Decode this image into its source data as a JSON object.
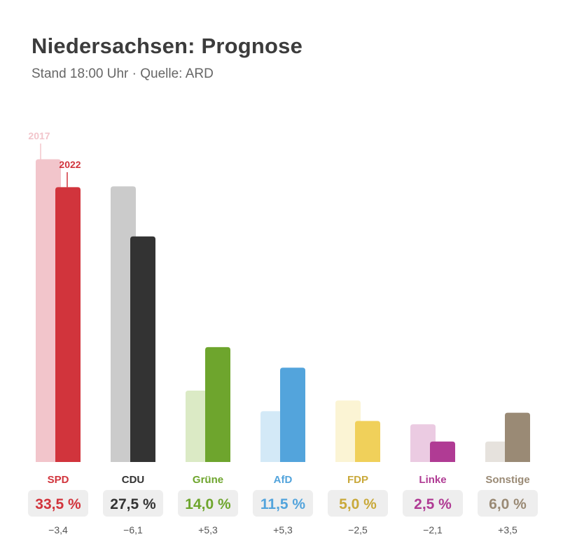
{
  "header": {
    "title": "Niedersachsen: Prognose",
    "subtitle": "Stand 18:00 Uhr · Quelle: ARD"
  },
  "chart_data": {
    "type": "bar",
    "title": "Niedersachsen: Prognose",
    "subtitle": "Stand 18:00 Uhr · Quelle: ARD",
    "year_labels": [
      "2017",
      "2022"
    ],
    "unit_symbol": "%",
    "categories": [
      "SPD",
      "CDU",
      "Grüne",
      "AfD",
      "FDP",
      "Linke",
      "Sonstige"
    ],
    "series": [
      {
        "name": "2017",
        "values": [
          36.9,
          33.6,
          8.7,
          6.2,
          7.5,
          4.6,
          2.5
        ]
      },
      {
        "name": "2022",
        "values": [
          33.5,
          27.5,
          14.0,
          11.5,
          5.0,
          2.5,
          6.0
        ]
      }
    ],
    "value_labels": [
      "33,5",
      "27,5",
      "14,0",
      "11,5",
      "5,0",
      "2,5",
      "6,0"
    ],
    "diff_labels": [
      "−3,4",
      "−6,1",
      "+5,3",
      "+5,3",
      "−2,5",
      "−2,1",
      "+3,5"
    ],
    "colors_2022": [
      "#d1343c",
      "#333333",
      "#6ea52d",
      "#53a4dc",
      "#f0d05a",
      "#b03b94",
      "#9a8a75"
    ],
    "colors_2017": [
      "#f2c5cb",
      "#cbcbcb",
      "#dbeac5",
      "#d3e9f7",
      "#fbf4d4",
      "#ebcbe2",
      "#e6e2dd"
    ],
    "label_colors": [
      "#d1343c",
      "#333333",
      "#6ea52d",
      "#53a4dc",
      "#c9a93a",
      "#b03b94",
      "#9a8a75"
    ],
    "year_label_colors": [
      "#f2c5cb",
      "#d1343c"
    ],
    "ylim": [
      0,
      40
    ],
    "grid": false,
    "legend": "none"
  }
}
